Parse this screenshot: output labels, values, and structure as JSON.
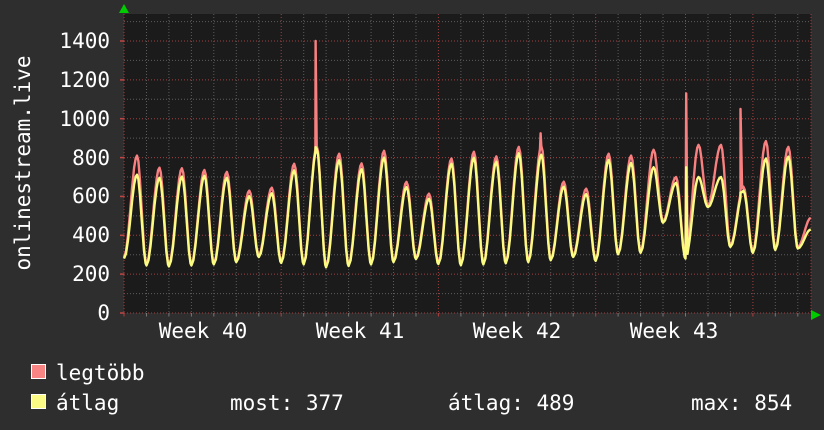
{
  "title": "onlinestream.live",
  "legend": {
    "items": [
      {
        "label": "legtöbb",
        "color": "#f98484"
      },
      {
        "label": "átlag",
        "color": "#fbfb85"
      }
    ]
  },
  "stats": [
    {
      "label": "most",
      "value": "377"
    },
    {
      "label": "átlag",
      "value": "489"
    },
    {
      "label": "max",
      "value": "854"
    }
  ],
  "chart_data": {
    "type": "line",
    "title": "onlinestream.live",
    "x_axis": {
      "tick_labels": [
        "Week 40",
        "Week 41",
        "Week 42",
        "Week 43"
      ],
      "days_per_week": 7,
      "total_days": 30.59,
      "grid": "minor line per day, major red line per week"
    },
    "y_axis": {
      "min": 0,
      "max": 1538,
      "major_ticks": [
        0,
        200,
        400,
        600,
        800,
        1000,
        1200,
        1400
      ],
      "minor_step": 100
    },
    "grid": {
      "major_color": "#a04040",
      "minor_color": "#5c5c5c",
      "style": "dotted"
    },
    "arrow_color": "#00cc00",
    "day_troughs": [
      280,
      245,
      240,
      245,
      250,
      262,
      288,
      258,
      250,
      235,
      242,
      250,
      262,
      278,
      252,
      246,
      250,
      256,
      262,
      272,
      288,
      268,
      302,
      310,
      465,
      280,
      545,
      340,
      310,
      325,
      332,
      335
    ],
    "series": [
      {
        "name": "legtöbb",
        "color": "#f98080",
        "trough_offset": 8,
        "day_peaks": [
          810,
          748,
          745,
          736,
          726,
          630,
          645,
          768,
          860,
          820,
          770,
          835,
          675,
          614,
          795,
          830,
          806,
          855,
          860,
          676,
          640,
          820,
          810,
          840,
          700,
          865,
          865,
          650,
          885,
          855,
          490
        ],
        "spikes": [
          {
            "t": 8.53,
            "v": 1400
          },
          {
            "t": 18.55,
            "v": 925
          },
          {
            "t": 25.03,
            "v": 1130
          },
          {
            "t": 27.45,
            "v": 1050
          }
        ]
      },
      {
        "name": "átlag",
        "color": "#fcfc82",
        "trough_offset": 0,
        "day_peaks": [
          712,
          696,
          702,
          706,
          696,
          601,
          616,
          734,
          845,
          786,
          740,
          800,
          648,
          588,
          768,
          799,
          778,
          822,
          815,
          650,
          612,
          788,
          772,
          750,
          670,
          700,
          700,
          630,
          795,
          805,
          430
        ],
        "spikes": [
          {
            "t": 8.53,
            "v": 854
          },
          {
            "t": 25.03,
            "v": 750
          },
          {
            "t": 27.45,
            "v": 620
          }
        ]
      }
    ],
    "summary": {
      "most": 377,
      "átlag": 489,
      "max": 854
    }
  }
}
